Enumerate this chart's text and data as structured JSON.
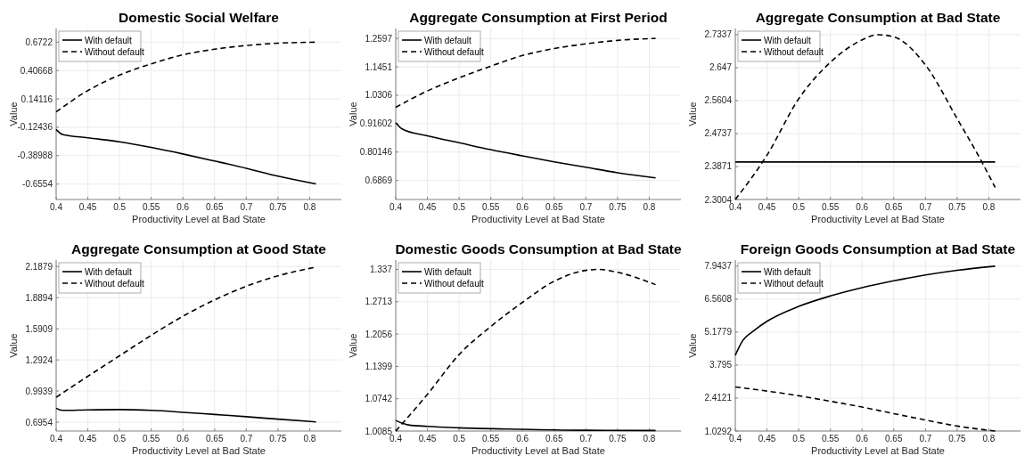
{
  "chart_data": [
    {
      "type": "line",
      "title": "Domestic Social Welfare",
      "xlabel": "Productivity Level at Bad State",
      "ylabel": "Value",
      "xlim": [
        0.4,
        0.85
      ],
      "xticks": [
        0.4,
        0.45,
        0.5,
        0.55,
        0.6,
        0.65,
        0.7,
        0.75,
        0.8
      ],
      "ylim": [
        -0.8,
        0.8
      ],
      "yticks": [
        -0.6554,
        -0.38988,
        -0.12436,
        0.14116,
        0.40668,
        0.6722
      ],
      "grid": true,
      "legend": "top left",
      "series": [
        {
          "name": "With default",
          "color": "#000000",
          "line_style": "solid",
          "x": [
            0.4,
            0.41,
            0.45,
            0.5,
            0.55,
            0.6,
            0.65,
            0.7,
            0.75,
            0.81
          ],
          "values": [
            -0.145,
            -0.192,
            -0.223,
            -0.26,
            -0.313,
            -0.374,
            -0.44,
            -0.508,
            -0.582,
            -0.655
          ]
        },
        {
          "name": "Without default",
          "color": "#000000",
          "line_style": "dashed",
          "x": [
            0.4,
            0.45,
            0.5,
            0.55,
            0.6,
            0.65,
            0.7,
            0.75,
            0.81
          ],
          "values": [
            0.02,
            0.219,
            0.364,
            0.469,
            0.554,
            0.606,
            0.641,
            0.662,
            0.672
          ]
        }
      ]
    },
    {
      "type": "line",
      "title": "Aggregate Consumption at First Period",
      "xlabel": "Productivity Level at Bad State",
      "ylabel": "Value",
      "xlim": [
        0.4,
        0.85
      ],
      "xticks": [
        0.4,
        0.45,
        0.5,
        0.55,
        0.6,
        0.65,
        0.7,
        0.75,
        0.8
      ],
      "ylim": [
        0.61,
        1.3
      ],
      "yticks": [
        0.6869,
        0.80146,
        0.91602,
        1.0306,
        1.1451,
        1.2597
      ],
      "grid": true,
      "legend": "top left",
      "series": [
        {
          "name": "With default",
          "color": "#000000",
          "line_style": "solid",
          "x": [
            0.4,
            0.41,
            0.45,
            0.5,
            0.55,
            0.6,
            0.65,
            0.7,
            0.75,
            0.81
          ],
          "values": [
            0.92,
            0.895,
            0.867,
            0.839,
            0.811,
            0.786,
            0.762,
            0.74,
            0.718,
            0.697
          ]
        },
        {
          "name": "Without default",
          "color": "#000000",
          "line_style": "dashed",
          "x": [
            0.4,
            0.45,
            0.5,
            0.55,
            0.6,
            0.65,
            0.7,
            0.75,
            0.81
          ],
          "values": [
            0.982,
            1.048,
            1.101,
            1.148,
            1.191,
            1.219,
            1.238,
            1.252,
            1.26
          ]
        }
      ]
    },
    {
      "type": "line",
      "title": "Aggregate Consumption at Bad State",
      "xlabel": "Productivity Level at Bad State",
      "ylabel": "Value",
      "xlim": [
        0.4,
        0.85
      ],
      "xticks": [
        0.4,
        0.45,
        0.5,
        0.55,
        0.6,
        0.65,
        0.7,
        0.75,
        0.8
      ],
      "ylim": [
        2.3004,
        2.75
      ],
      "yticks": [
        2.3004,
        2.3871,
        2.4737,
        2.5604,
        2.647,
        2.7337
      ],
      "grid": true,
      "legend": "top left",
      "series": [
        {
          "name": "With default",
          "color": "#000000",
          "line_style": "solid",
          "x": [
            0.4,
            0.81
          ],
          "values": [
            2.399,
            2.399
          ]
        },
        {
          "name": "Without default",
          "color": "#000000",
          "line_style": "dashed",
          "x": [
            0.4,
            0.45,
            0.5,
            0.55,
            0.6,
            0.625,
            0.65,
            0.7,
            0.75,
            0.79,
            0.81
          ],
          "values": [
            2.3004,
            2.417,
            2.565,
            2.661,
            2.72,
            2.7337,
            2.728,
            2.654,
            2.513,
            2.396,
            2.332
          ]
        }
      ]
    },
    {
      "type": "line",
      "title": "Aggregate Consumption at Good State",
      "xlabel": "Productivity Level at Bad State",
      "ylabel": "Value",
      "xlim": [
        0.4,
        0.85
      ],
      "xticks": [
        0.4,
        0.45,
        0.5,
        0.55,
        0.6,
        0.65,
        0.7,
        0.75,
        0.8
      ],
      "ylim": [
        0.61,
        2.25
      ],
      "yticks": [
        0.6954,
        0.9939,
        1.2924,
        1.5909,
        1.8894,
        2.1879
      ],
      "grid": true,
      "legend": "top left",
      "series": [
        {
          "name": "With default",
          "color": "#000000",
          "line_style": "solid",
          "x": [
            0.4,
            0.41,
            0.45,
            0.5,
            0.55,
            0.6,
            0.65,
            0.7,
            0.75,
            0.81
          ],
          "values": [
            0.829,
            0.808,
            0.813,
            0.816,
            0.808,
            0.79,
            0.769,
            0.748,
            0.724,
            0.698
          ]
        },
        {
          "name": "Without default",
          "color": "#000000",
          "line_style": "dashed",
          "x": [
            0.4,
            0.45,
            0.5,
            0.55,
            0.6,
            0.65,
            0.7,
            0.75,
            0.81
          ],
          "values": [
            0.934,
            1.135,
            1.332,
            1.528,
            1.711,
            1.868,
            1.999,
            2.099,
            2.183
          ]
        }
      ]
    },
    {
      "type": "line",
      "title": "Domestic Goods Consumption at Bad State",
      "xlabel": "Productivity Level at Bad State",
      "ylabel": "Value",
      "xlim": [
        0.4,
        0.85
      ],
      "xticks": [
        0.4,
        0.45,
        0.5,
        0.55,
        0.6,
        0.65,
        0.7,
        0.75,
        0.8
      ],
      "ylim": [
        1.0085,
        1.356
      ],
      "yticks": [
        1.0085,
        1.0742,
        1.1399,
        1.2056,
        1.2713,
        1.337
      ],
      "grid": true,
      "legend": "top left",
      "series": [
        {
          "name": "With default",
          "color": "#000000",
          "line_style": "solid",
          "x": [
            0.4,
            0.42,
            0.45,
            0.5,
            0.6,
            0.7,
            0.81
          ],
          "values": [
            1.03,
            1.021,
            1.018,
            1.015,
            1.012,
            1.01,
            1.0096
          ]
        },
        {
          "name": "Without default",
          "color": "#000000",
          "line_style": "dashed",
          "x": [
            0.4,
            0.45,
            0.5,
            0.55,
            0.6,
            0.65,
            0.7,
            0.72,
            0.75,
            0.81
          ],
          "values": [
            1.0085,
            1.083,
            1.164,
            1.221,
            1.27,
            1.313,
            1.335,
            1.337,
            1.331,
            1.306
          ]
        }
      ]
    },
    {
      "type": "line",
      "title": "Foreign Goods Consumption at Bad State",
      "xlabel": "Productivity Level at Bad State",
      "ylabel": "Value",
      "xlim": [
        0.4,
        0.85
      ],
      "xticks": [
        0.4,
        0.45,
        0.5,
        0.55,
        0.6,
        0.65,
        0.7,
        0.75,
        0.8
      ],
      "ylim": [
        1.0292,
        8.2
      ],
      "yticks": [
        1.0292,
        2.4121,
        3.795,
        5.1779,
        6.5608,
        7.9437
      ],
      "grid": true,
      "legend": "top left",
      "series": [
        {
          "name": "With default",
          "color": "#000000",
          "line_style": "solid",
          "x": [
            0.4,
            0.41,
            0.43,
            0.45,
            0.5,
            0.55,
            0.6,
            0.65,
            0.7,
            0.75,
            0.81
          ],
          "values": [
            4.209,
            4.753,
            5.25,
            5.631,
            6.256,
            6.695,
            7.042,
            7.331,
            7.574,
            7.77,
            7.944
          ]
        },
        {
          "name": "Without default",
          "color": "#000000",
          "line_style": "dashed",
          "x": [
            0.4,
            0.45,
            0.5,
            0.55,
            0.6,
            0.65,
            0.7,
            0.75,
            0.81
          ],
          "values": [
            2.88,
            2.706,
            2.51,
            2.279,
            2.036,
            1.759,
            1.493,
            1.239,
            1.0292
          ]
        }
      ]
    }
  ]
}
